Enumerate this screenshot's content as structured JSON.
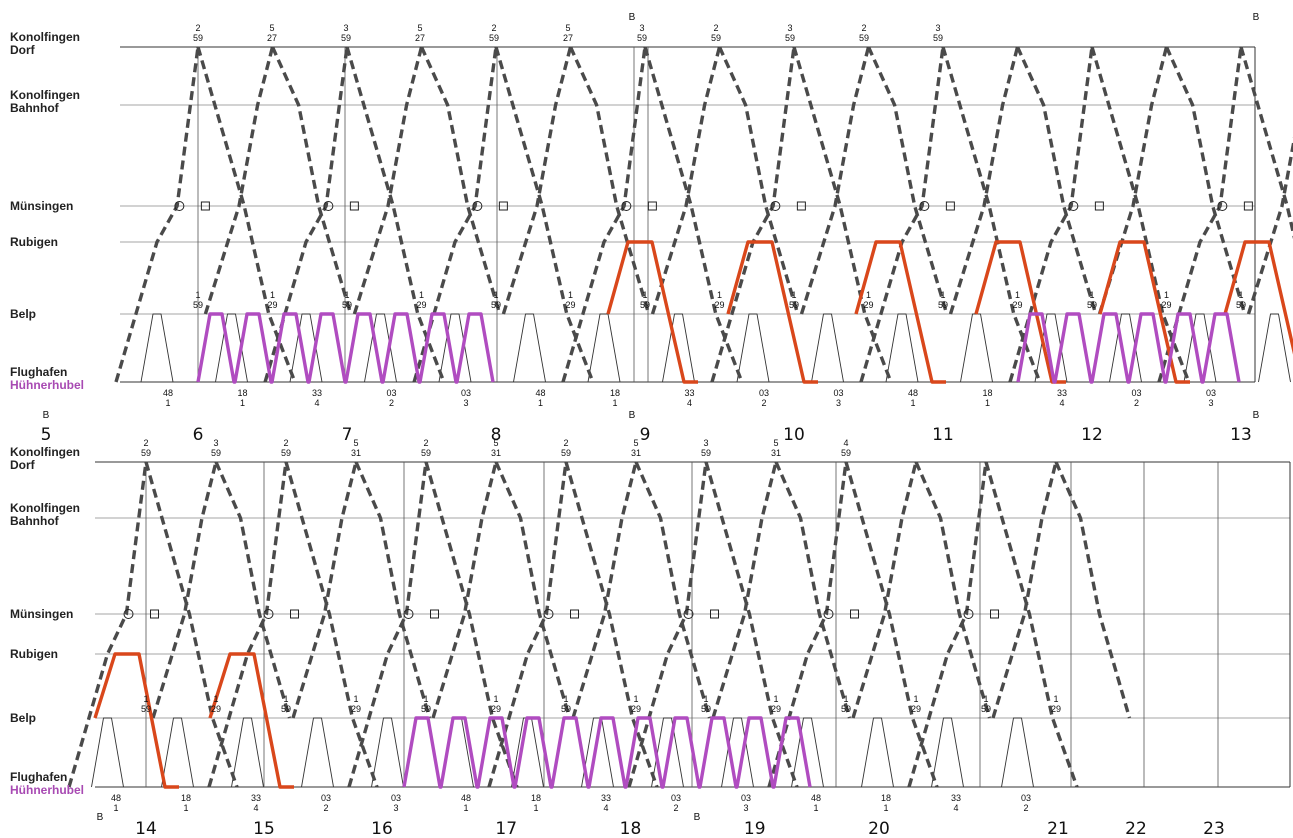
{
  "panels": [
    {
      "id": "top",
      "stations": [
        {
          "line1": "Konolfingen",
          "line2": "Dorf",
          "accent": false
        },
        {
          "line1": "Konolfingen",
          "line2": "Bahnhof",
          "accent": false
        },
        {
          "line1": "Münsingen",
          "line2": "",
          "accent": false
        },
        {
          "line1": "Rubigen",
          "line2": "",
          "accent": false
        },
        {
          "line1": "Belp",
          "line2": "",
          "accent": false
        },
        {
          "line1": "Flughafen",
          "line2": "Hühnerhubel",
          "accent": true
        }
      ],
      "hours": [
        "5",
        "6",
        "7",
        "8",
        "9",
        "10",
        "11",
        "12",
        "13"
      ],
      "b_markers": [
        "B",
        "B",
        "B",
        "B",
        "B"
      ]
    },
    {
      "id": "bottom",
      "stations": [
        {
          "line1": "Konolfingen",
          "line2": "Dorf",
          "accent": false
        },
        {
          "line1": "Konolfingen",
          "line2": "Bahnhof",
          "accent": false
        },
        {
          "line1": "Münsingen",
          "line2": "",
          "accent": false
        },
        {
          "line1": "Rubigen",
          "line2": "",
          "accent": false
        },
        {
          "line1": "Belp",
          "line2": "",
          "accent": false
        },
        {
          "line1": "Flughafen",
          "line2": "Hühnerhubel",
          "accent": true
        }
      ],
      "hours": [
        "14",
        "15",
        "16",
        "17",
        "18",
        "19",
        "20",
        "21",
        "22",
        "23"
      ],
      "b_markers": [
        "B",
        "B"
      ]
    }
  ],
  "minute_labels": {
    "konolfingen_dorf_top": [
      "2 59",
      "5 27",
      "3 59",
      "5 27",
      "2 59",
      "5 27",
      "3 59",
      "2 59",
      "3 59",
      "2 59",
      "3 59"
    ],
    "konolfingen_dorf_bottom": [
      "2 59",
      "3 59",
      "2 59",
      "5 31",
      "2 59",
      "5 31",
      "2 59",
      "5 31",
      "3 59",
      "5 31",
      "4 59"
    ],
    "belp": [
      "1 59",
      "1 29"
    ],
    "flughafen": [
      "48 1",
      "18 1",
      "33 4",
      "03 2",
      "03 3"
    ]
  },
  "colors": {
    "ink": "#222222",
    "dash": "#4a4a4a",
    "red": "#d9471b",
    "purple": "#b04cc0",
    "grid": "#777777"
  }
}
